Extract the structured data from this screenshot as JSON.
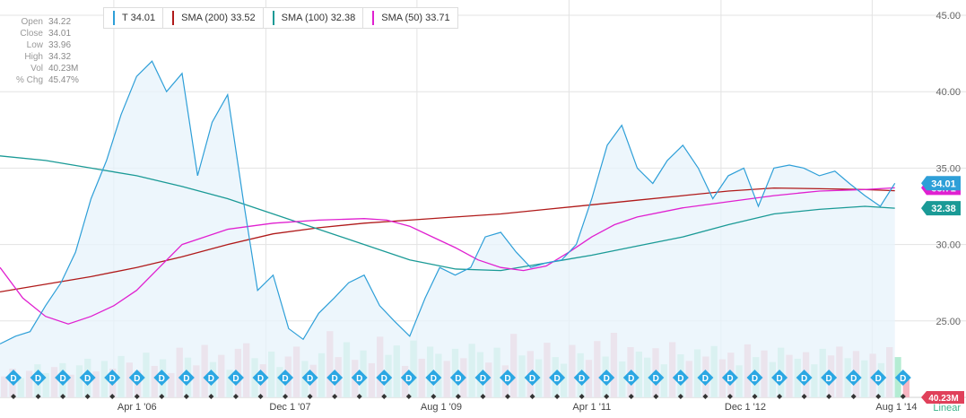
{
  "ohlc": [
    {
      "label": "Open",
      "value": "34.22"
    },
    {
      "label": "Close",
      "value": "34.01"
    },
    {
      "label": "Low",
      "value": "33.96"
    },
    {
      "label": "High",
      "value": "34.32"
    },
    {
      "label": "Vol",
      "value": "40.23M"
    },
    {
      "label": "% Chg",
      "value": "45.47%"
    }
  ],
  "legend": [
    {
      "text": "T 34.01",
      "color": "#2e9fd8"
    },
    {
      "text": "SMA (200) 33.52",
      "color": "#b01a1a"
    },
    {
      "text": "SMA (100) 32.38",
      "color": "#1a9a96"
    },
    {
      "text": "SMA (50) 33.71",
      "color": "#e020d0"
    }
  ],
  "scale_label": "Linear",
  "chart_data": {
    "type": "line",
    "series": [
      {
        "name": "T",
        "color": "#2e9fd8",
        "x": [
          2005.0,
          2005.17,
          2005.33,
          2005.5,
          2005.67,
          2005.83,
          2006.0,
          2006.17,
          2006.33,
          2006.5,
          2006.67,
          2006.83,
          2007.0,
          2007.17,
          2007.33,
          2007.5,
          2007.67,
          2007.83,
          2008.0,
          2008.17,
          2008.33,
          2008.5,
          2008.67,
          2008.83,
          2009.0,
          2009.17,
          2009.33,
          2009.5,
          2009.67,
          2009.83,
          2010.0,
          2010.17,
          2010.33,
          2010.5,
          2010.67,
          2010.83,
          2011.0,
          2011.17,
          2011.33,
          2011.5,
          2011.67,
          2011.83,
          2012.0,
          2012.17,
          2012.33,
          2012.5,
          2012.67,
          2012.83,
          2013.0,
          2013.17,
          2013.33,
          2013.5,
          2013.67,
          2013.83,
          2014.0,
          2014.17,
          2014.33,
          2014.5,
          2014.67,
          2014.83
        ],
        "y": [
          23.5,
          24.0,
          24.3,
          26.0,
          27.5,
          29.5,
          33.0,
          35.5,
          38.5,
          41.0,
          42.0,
          40.0,
          41.2,
          34.5,
          38.0,
          39.8,
          33.0,
          27.0,
          28.0,
          24.5,
          23.8,
          25.5,
          26.5,
          27.5,
          28.0,
          26.0,
          25.0,
          24.0,
          26.5,
          28.5,
          28.0,
          28.5,
          30.5,
          30.8,
          29.5,
          28.5,
          28.8,
          29.0,
          30.0,
          33.0,
          36.5,
          37.8,
          35.0,
          34.0,
          35.5,
          36.5,
          35.0,
          33.0,
          34.5,
          35.0,
          32.5,
          35.0,
          35.2,
          35.0,
          34.5,
          34.8,
          34.0,
          33.2,
          32.5,
          34.01
        ]
      },
      {
        "name": "SMA (200)",
        "color": "#b01a1a",
        "x": [
          2005.0,
          2005.5,
          2006.0,
          2006.5,
          2007.0,
          2007.5,
          2008.0,
          2008.5,
          2009.0,
          2009.5,
          2010.0,
          2010.5,
          2011.0,
          2011.5,
          2012.0,
          2012.5,
          2013.0,
          2013.5,
          2014.0,
          2014.5,
          2014.83
        ],
        "y": [
          26.9,
          27.4,
          27.9,
          28.5,
          29.2,
          30.0,
          30.7,
          31.1,
          31.4,
          31.6,
          31.8,
          32.0,
          32.3,
          32.6,
          32.9,
          33.2,
          33.5,
          33.7,
          33.65,
          33.6,
          33.52
        ]
      },
      {
        "name": "SMA (100)",
        "color": "#1a9a96",
        "x": [
          2005.0,
          2005.5,
          2006.0,
          2006.5,
          2007.0,
          2007.5,
          2008.0,
          2008.5,
          2009.0,
          2009.5,
          2010.0,
          2010.5,
          2011.0,
          2011.5,
          2012.0,
          2012.5,
          2013.0,
          2013.5,
          2014.0,
          2014.5,
          2014.83
        ],
        "y": [
          35.8,
          35.5,
          35.0,
          34.5,
          33.8,
          33.0,
          32.0,
          31.0,
          30.0,
          29.0,
          28.4,
          28.3,
          28.8,
          29.3,
          29.9,
          30.5,
          31.3,
          32.0,
          32.3,
          32.5,
          32.38
        ]
      },
      {
        "name": "SMA (50)",
        "color": "#e020d0",
        "x": [
          2005.0,
          2005.25,
          2005.5,
          2005.75,
          2006.0,
          2006.25,
          2006.5,
          2006.75,
          2007.0,
          2007.25,
          2007.5,
          2007.75,
          2008.0,
          2008.5,
          2009.0,
          2009.25,
          2009.5,
          2009.75,
          2010.0,
          2010.25,
          2010.5,
          2010.75,
          2011.0,
          2011.25,
          2011.5,
          2011.75,
          2012.0,
          2012.5,
          2013.0,
          2013.5,
          2014.0,
          2014.5,
          2014.83
        ],
        "y": [
          28.5,
          26.5,
          25.3,
          24.8,
          25.3,
          26.0,
          27.0,
          28.5,
          30.0,
          30.5,
          31.0,
          31.2,
          31.4,
          31.6,
          31.7,
          31.6,
          31.2,
          30.5,
          29.8,
          29.0,
          28.5,
          28.3,
          28.6,
          29.5,
          30.5,
          31.3,
          31.8,
          32.4,
          32.8,
          33.2,
          33.5,
          33.6,
          33.71
        ]
      }
    ],
    "volume": {
      "unit": "M",
      "values": [
        38,
        52,
        35,
        48,
        60,
        44,
        55,
        62,
        41,
        58,
        70,
        47,
        66,
        52,
        75,
        63,
        49,
        81,
        57,
        69,
        44,
        90,
        72,
        58,
        95,
        64,
        77,
        50,
        88,
        98,
        71,
        60,
        83,
        55,
        74,
        92,
        66,
        59,
        80,
        120,
        73,
        100,
        68,
        85,
        62,
        110,
        77,
        94,
        57,
        103,
        70,
        92,
        79,
        66,
        88,
        71,
        97,
        82,
        63,
        90,
        58,
        115,
        76,
        84,
        69,
        99,
        73,
        61,
        95,
        80,
        68,
        102,
        74,
        117,
        65,
        91,
        83,
        72,
        89,
        60,
        100,
        78,
        66,
        87,
        74,
        93,
        69,
        81,
        58,
        96,
        73,
        85,
        64,
        90,
        77,
        70,
        82,
        60,
        88,
        76,
        92,
        71,
        84,
        67,
        79,
        62,
        91,
        73,
        40
      ],
      "colors": [
        "r",
        "r",
        "g",
        "r",
        "g",
        "g",
        "r",
        "g",
        "r",
        "g",
        "g",
        "r",
        "g",
        "r",
        "g",
        "r",
        "r",
        "g",
        "r",
        "g",
        "r",
        "r",
        "g",
        "r",
        "r",
        "g",
        "r",
        "g",
        "r",
        "r",
        "g",
        "r",
        "g",
        "g",
        "r",
        "r",
        "g",
        "r",
        "g",
        "r",
        "r",
        "g",
        "r",
        "g",
        "r",
        "r",
        "g",
        "g",
        "r",
        "g",
        "r",
        "g",
        "g",
        "r",
        "g",
        "r",
        "g",
        "g",
        "r",
        "g",
        "r",
        "r",
        "g",
        "r",
        "g",
        "r",
        "g",
        "g",
        "r",
        "g",
        "r",
        "r",
        "g",
        "r",
        "g",
        "r",
        "g",
        "g",
        "r",
        "g",
        "r",
        "g",
        "r",
        "g",
        "r",
        "g",
        "r",
        "r",
        "g",
        "r",
        "g",
        "r",
        "g",
        "g",
        "r",
        "g",
        "r",
        "g",
        "g",
        "r",
        "r",
        "g",
        "r",
        "g",
        "r",
        "g",
        "r",
        "g",
        "r"
      ]
    },
    "y_ticks": [
      {
        "value": 45,
        "label": "45.00"
      },
      {
        "value": 40,
        "label": "40.00"
      },
      {
        "value": 35,
        "label": "35.00"
      },
      {
        "value": 30,
        "label": "30.00"
      },
      {
        "value": 25,
        "label": "25.00"
      }
    ],
    "x_ticks": [
      {
        "value": 2006.25,
        "label": "Apr 1 '06"
      },
      {
        "value": 2007.92,
        "label": "Dec 1 '07"
      },
      {
        "value": 2009.58,
        "label": "Aug 1 '09"
      },
      {
        "value": 2011.25,
        "label": "Apr 1 '11"
      },
      {
        "value": 2012.92,
        "label": "Dec 1 '12"
      },
      {
        "value": 2014.58,
        "label": "Aug 1 '14"
      }
    ],
    "ylim": [
      20,
      46
    ],
    "xlim": [
      2005.0,
      2015.0
    ],
    "value_tags": [
      {
        "text": "33.71",
        "value": 33.71,
        "color": "#e020d0"
      },
      {
        "text": "32.38",
        "value": 32.38,
        "color": "#1a9a96"
      },
      {
        "text": "34.01",
        "value": 34.01,
        "color": "#2e9fd8"
      }
    ],
    "last_volume": {
      "text": "40.23M",
      "color": "#e0405a"
    },
    "dividend_marker": "D",
    "dividend_count": 37
  }
}
